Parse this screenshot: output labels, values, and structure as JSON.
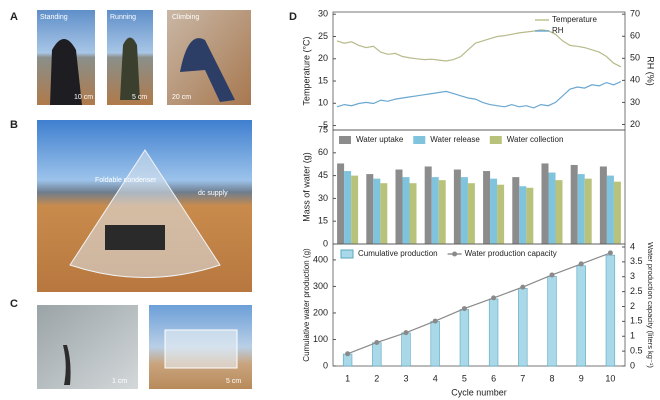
{
  "panels": {
    "A": {
      "label": "A",
      "photos": [
        {
          "caption": "Standing",
          "scale": "10 cm"
        },
        {
          "caption": "Running",
          "scale": "5 cm"
        },
        {
          "caption": "Climbing",
          "scale": "20 cm"
        }
      ]
    },
    "B": {
      "label": "B",
      "annotations": [
        "Foldable condenser",
        "dc supply"
      ]
    },
    "C": {
      "label": "C",
      "photos": [
        {
          "scale": "1 cm"
        },
        {
          "scale": "5 cm"
        }
      ]
    },
    "D": {
      "label": "D"
    }
  },
  "chart_data": [
    {
      "type": "line",
      "ylabel": "Temperature (°C)",
      "y2label": "RH (%)",
      "ylim": [
        4,
        30.5
      ],
      "yticks": [
        5,
        10,
        15,
        20,
        25,
        30
      ],
      "y2lim": [
        17.5,
        71
      ],
      "y2ticks": [
        20,
        30,
        40,
        50,
        60,
        70
      ],
      "legend": "upper right",
      "series": [
        {
          "name": "Temperature",
          "color": "#b8bb8c",
          "values": [
            24,
            23.5,
            23.8,
            23,
            22.5,
            22.8,
            21.5,
            21,
            21.2,
            20.5,
            20.2,
            20,
            19.8,
            19.9,
            19.7,
            19.5,
            19.8,
            20.5,
            22,
            23.5,
            24,
            24.5,
            25,
            25.2,
            25.5,
            25.8,
            26,
            26.2,
            26.5,
            26.3,
            25.5,
            24,
            23,
            22.8,
            22.5,
            22,
            21.5,
            20.5,
            19,
            18.2
          ]
        },
        {
          "name": "RH",
          "color": "#6aa7d1",
          "axis": "y2",
          "values": [
            28,
            29,
            28.5,
            29.5,
            30,
            29.5,
            31,
            30.5,
            31.5,
            32,
            32.5,
            33,
            33.5,
            34,
            34.5,
            35,
            34,
            33,
            32,
            31.5,
            30,
            29,
            28.5,
            28,
            29,
            28,
            28.5,
            27.5,
            29,
            28.5,
            30,
            33,
            36,
            37,
            36.5,
            38,
            37.5,
            39,
            38,
            39.5
          ]
        }
      ]
    },
    {
      "type": "bar",
      "ylabel": "Mass of water (g)",
      "ylim": [
        0,
        75
      ],
      "yticks": [
        0,
        15,
        30,
        45,
        60,
        75
      ],
      "legend": "upper center",
      "series": [
        {
          "name": "Water uptake",
          "color": "#8c8c8c",
          "values": [
            53,
            46,
            49,
            51,
            49,
            48,
            44,
            53,
            52,
            51
          ]
        },
        {
          "name": "Water release",
          "color": "#7fc3dc",
          "values": [
            48,
            43,
            44,
            44,
            44,
            43,
            38,
            47,
            46,
            45
          ]
        },
        {
          "name": "Water collection",
          "color": "#b9c27a",
          "values": [
            45,
            40,
            40,
            42,
            40,
            39,
            37,
            42,
            43,
            41
          ]
        }
      ]
    },
    {
      "type": "bar",
      "ylabel": "Cumulative water production (g)",
      "y2label": "Water production capacity (liters kg⁻¹)",
      "xlabel": "Cycle number",
      "categories": [
        1,
        2,
        3,
        4,
        5,
        6,
        7,
        8,
        9,
        10
      ],
      "ylim": [
        0,
        460
      ],
      "yticks": [
        0,
        100,
        200,
        300,
        400
      ],
      "y2lim": [
        0,
        4.1
      ],
      "y2ticks": [
        0,
        0.5,
        1,
        1.5,
        2,
        2.5,
        3,
        3.5,
        4
      ],
      "legend": "upper left",
      "series": [
        {
          "name": "Cumulative production",
          "color": "#a9d9e8",
          "values": [
            45,
            88,
            125,
            168,
            213,
            253,
            293,
            338,
            378,
            418
          ]
        },
        {
          "name": "Water production capacity",
          "color": "#8a8a8a",
          "type": "line",
          "axis": "y2",
          "values": [
            0.41,
            0.79,
            1.12,
            1.51,
            1.93,
            2.29,
            2.65,
            3.06,
            3.43,
            3.8
          ]
        }
      ]
    }
  ]
}
